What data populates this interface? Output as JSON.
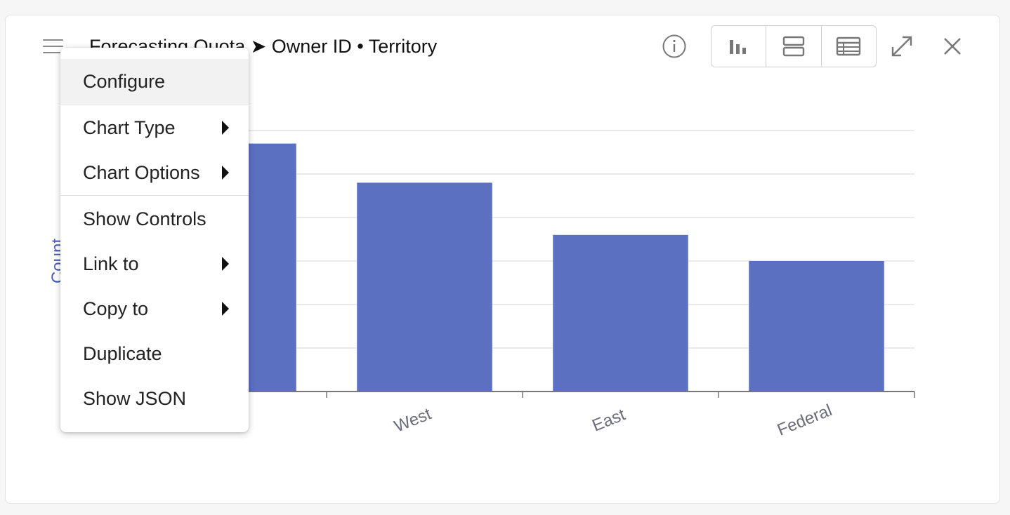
{
  "header": {
    "title": "Forecasting Quota ➤ Owner ID • Territory"
  },
  "colors": {
    "bar": "#5b70c0",
    "grid": "#e3e4ef",
    "axis": "#777777",
    "ylabel": "#4a5ab8"
  },
  "icons": [
    "menu-icon",
    "info-icon",
    "bar-chart-icon",
    "split-view-icon",
    "table-icon",
    "expand-icon",
    "close-icon"
  ],
  "chart_data": {
    "type": "bar",
    "ylabel": "Count",
    "categories": [
      "",
      "West",
      "East",
      "Federal"
    ],
    "values": [
      5.7,
      4.8,
      3.6,
      3.0
    ],
    "ylim": [
      0,
      6
    ],
    "grid": true
  },
  "menu": {
    "items": [
      {
        "label": "Configure"
      },
      {
        "label": "Chart Type"
      },
      {
        "label": "Chart Options"
      },
      {
        "label": "Show Controls"
      },
      {
        "label": "Link to"
      },
      {
        "label": "Copy to"
      },
      {
        "label": "Duplicate"
      },
      {
        "label": "Show JSON"
      }
    ]
  }
}
